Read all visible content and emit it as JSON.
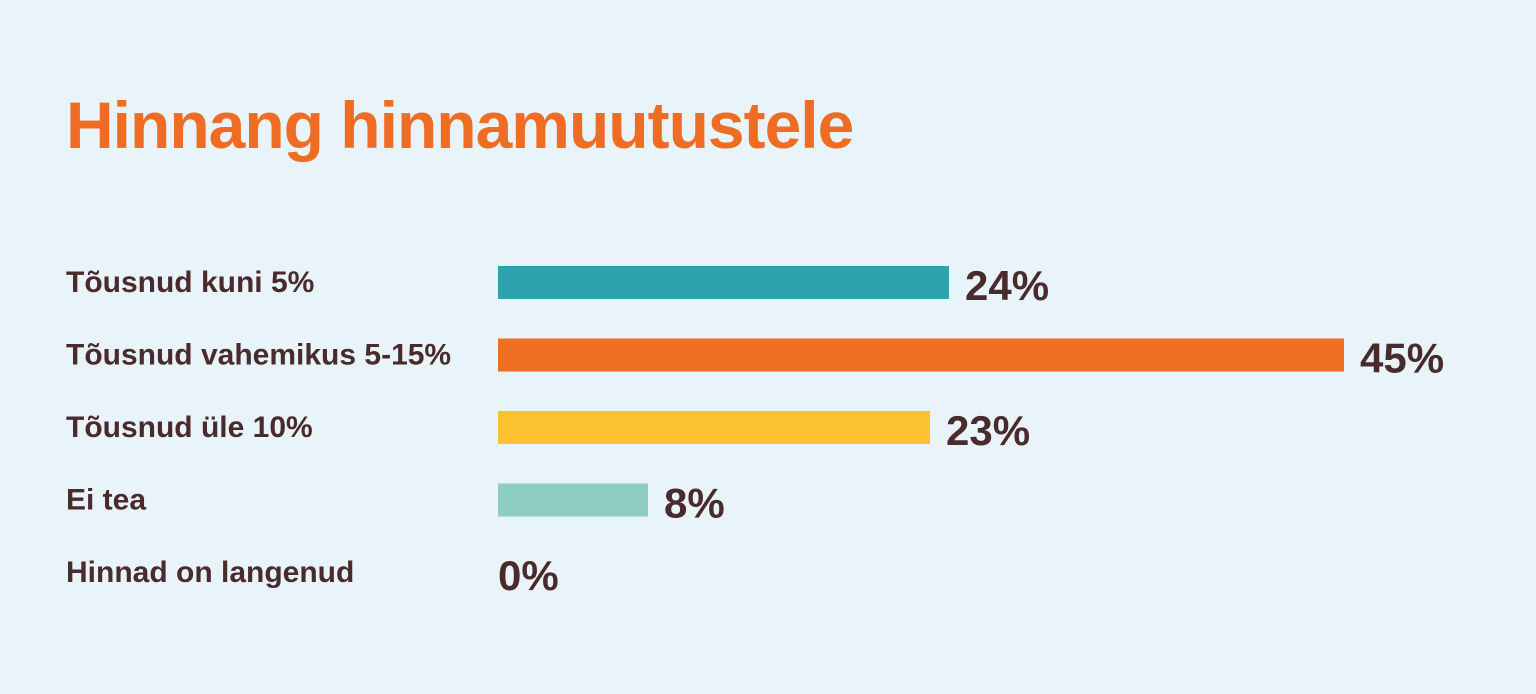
{
  "chart_data": {
    "type": "bar",
    "orientation": "horizontal",
    "title": "Hinnang hinnamuutustele",
    "categories": [
      "Tõusnud kuni 5%",
      "Tõusnud vahemikus 5-15%",
      "Tõusnud üle 10%",
      "Ei tea",
      "Hinnad on langenud"
    ],
    "values": [
      24,
      45,
      23,
      8,
      0
    ],
    "value_labels": [
      "24%",
      "45%",
      "23%",
      "8%",
      "0%"
    ],
    "unit": "%",
    "colors": [
      "#2ea3ad",
      "#ee6e22",
      "#fbc12e",
      "#8dcdc4",
      "#8dcdc4"
    ],
    "xlim": [
      0,
      45
    ],
    "grid": false,
    "legend": "none"
  },
  "style": {
    "background": "#e8f4fa",
    "title_color": "#ee6c23",
    "text_color": "#4a2b2c"
  }
}
